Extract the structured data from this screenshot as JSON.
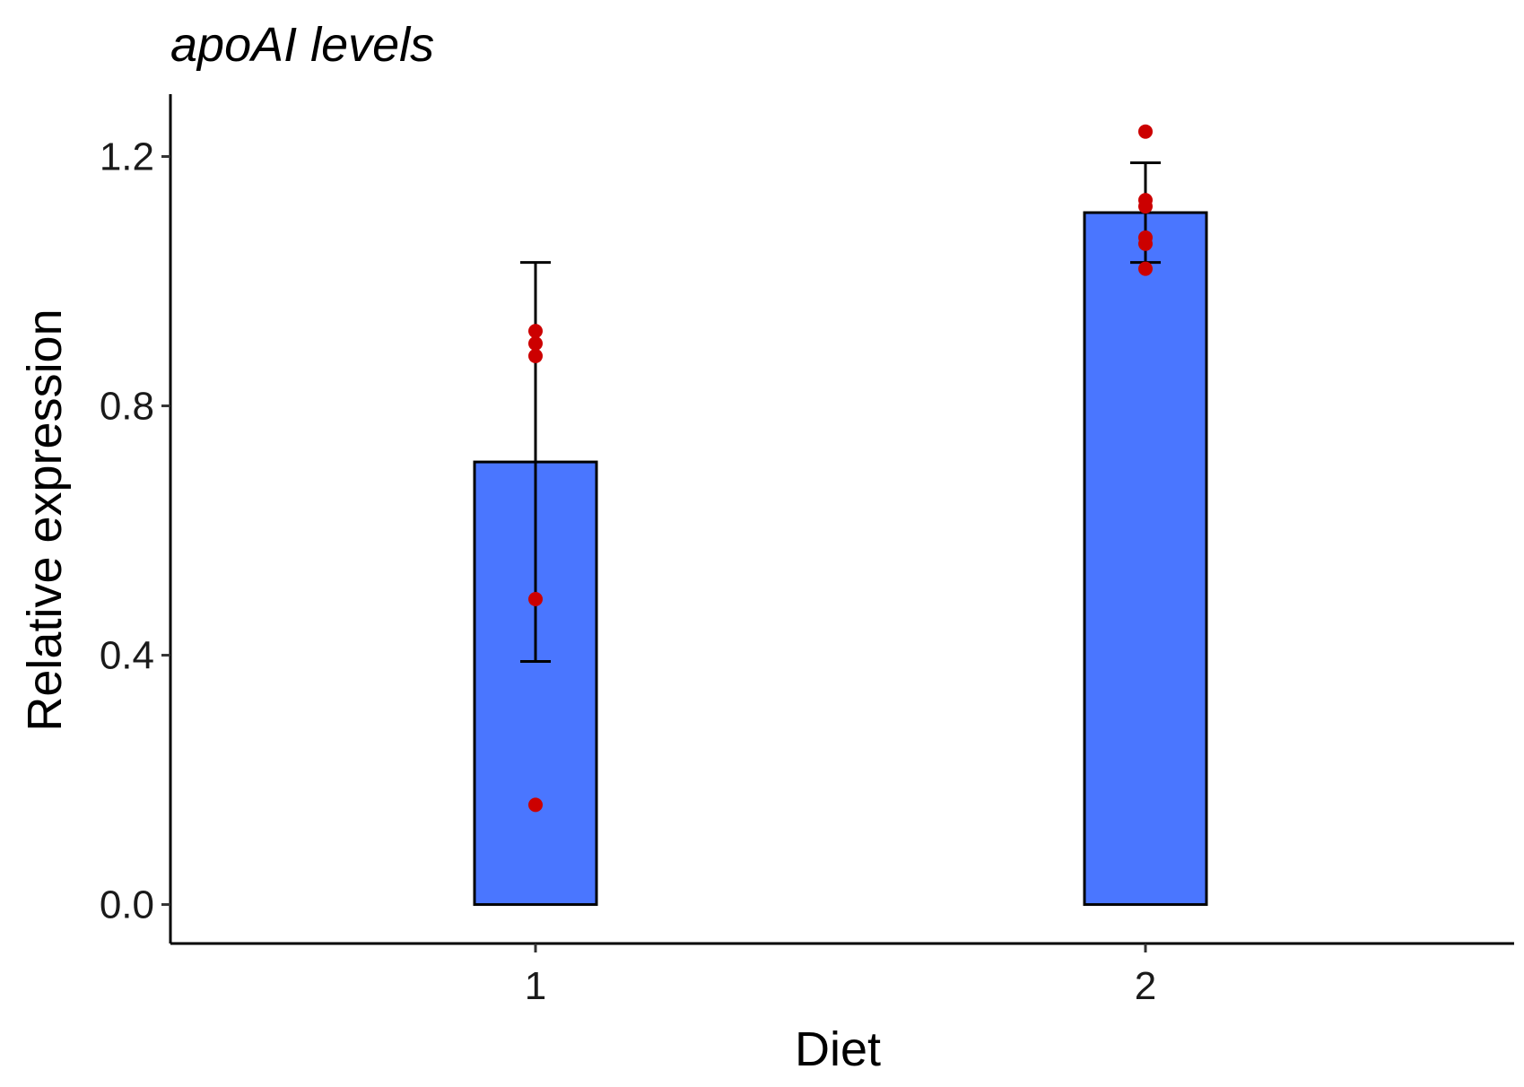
{
  "chart_data": {
    "type": "bar",
    "title": "apoAI levels",
    "xlabel": "Diet",
    "ylabel": "Relative expression",
    "categories": [
      "1",
      "2"
    ],
    "values": [
      0.71,
      1.11
    ],
    "error_bars": [
      {
        "low": 0.39,
        "high": 1.03
      },
      {
        "low": 1.03,
        "high": 1.19
      }
    ],
    "points": [
      [
        0.16,
        0.49,
        0.88,
        0.9,
        0.92
      ],
      [
        1.02,
        1.06,
        1.07,
        1.12,
        1.13,
        1.24
      ]
    ],
    "ylim": [
      -0.0625,
      1.3
    ],
    "yticks": [
      0.0,
      0.4,
      0.8,
      1.2
    ],
    "ytick_labels": [
      "0.0",
      "0.4",
      "0.8",
      "1.2"
    ],
    "colors": {
      "bar_fill": "#4A76FF",
      "bar_edge": "#000000",
      "points": "#CC0000",
      "error_bar": "#000000"
    }
  }
}
